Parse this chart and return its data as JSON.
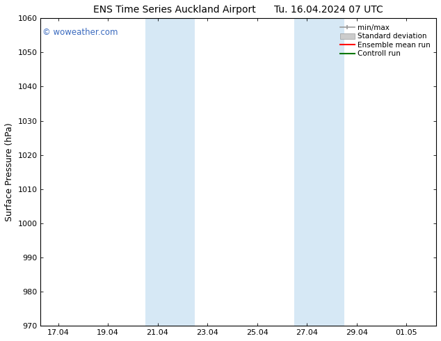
{
  "title_left": "ENS Time Series Auckland Airport",
  "title_right": "Tu. 16.04.2024 07 UTC",
  "ylabel": "Surface Pressure (hPa)",
  "ylim": [
    970,
    1060
  ],
  "yticks": [
    970,
    980,
    990,
    1000,
    1010,
    1020,
    1030,
    1040,
    1050,
    1060
  ],
  "xlim_start": 16.3,
  "xlim_end": 32.2,
  "xtick_labels": [
    "17.04",
    "19.04",
    "21.04",
    "23.04",
    "25.04",
    "27.04",
    "29.04",
    "01.05"
  ],
  "xtick_positions": [
    17,
    19,
    21,
    23,
    25,
    27,
    29,
    31
  ],
  "shade_bands": [
    {
      "x_start": 20.5,
      "x_end": 22.5
    },
    {
      "x_start": 26.5,
      "x_end": 28.5
    }
  ],
  "shade_color": "#d6e8f5",
  "watermark_text": "© woweather.com",
  "watermark_color": "#3a6abf",
  "background_color": "#ffffff",
  "legend_items": [
    {
      "label": "min/max",
      "color": "#999999",
      "lw": 1.2
    },
    {
      "label": "Standard deviation",
      "color": "#cccccc",
      "lw": 6
    },
    {
      "label": "Ensemble mean run",
      "color": "#ff0000",
      "lw": 1.5
    },
    {
      "label": "Controll run",
      "color": "#007700",
      "lw": 1.5
    }
  ],
  "title_fontsize": 10,
  "ylabel_fontsize": 9,
  "tick_fontsize": 8,
  "legend_fontsize": 7.5
}
